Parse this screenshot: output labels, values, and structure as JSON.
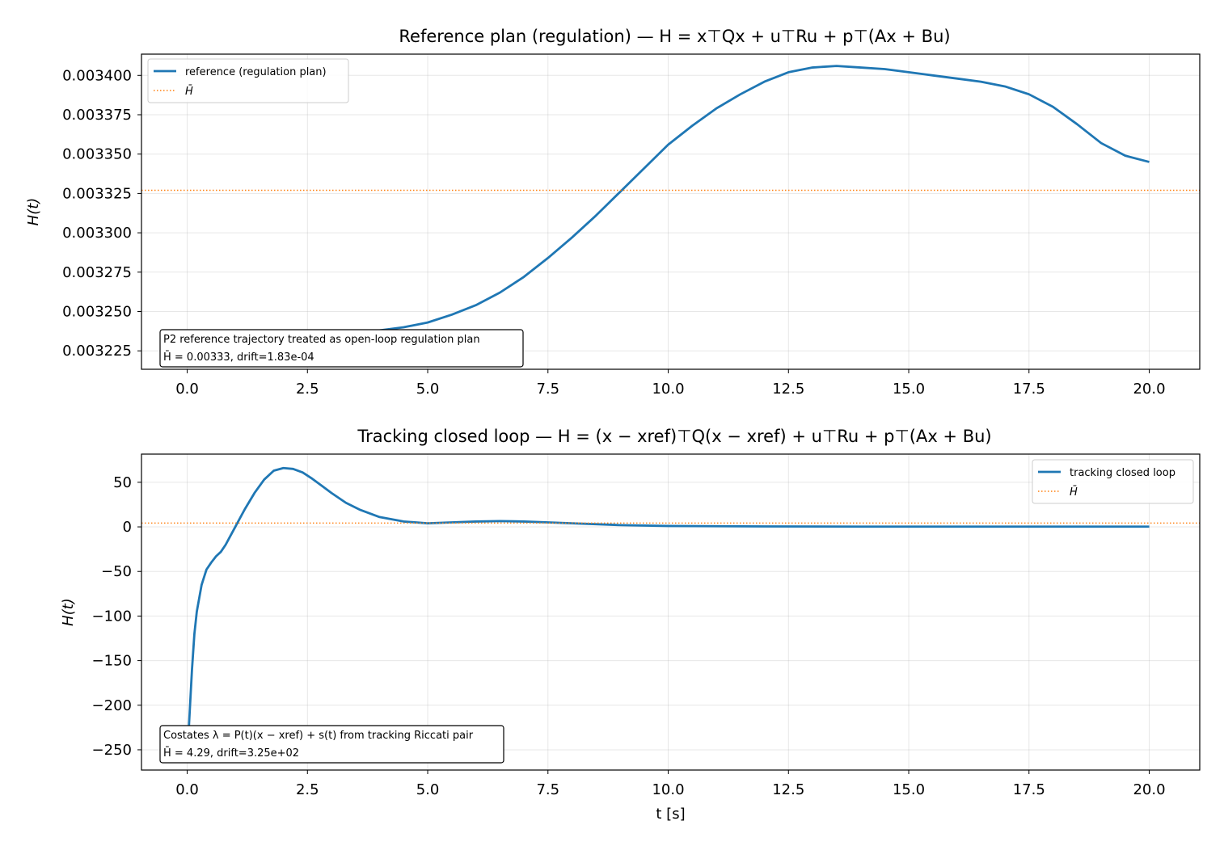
{
  "chart_data": [
    {
      "type": "line",
      "title": "Reference plan (regulation) — H = x⊤Qx + u⊤Ru + p⊤(Ax + Bu)",
      "xlabel": "",
      "ylabel": "H(t)",
      "xlim": [
        -0.95,
        21.05
      ],
      "ylim": [
        0.0032133,
        0.0034135
      ],
      "xticks": [
        0.0,
        2.5,
        5.0,
        7.5,
        10.0,
        12.5,
        15.0,
        17.5,
        20.0
      ],
      "xtick_labels": [
        "0.0",
        "2.5",
        "5.0",
        "7.5",
        "10.0",
        "12.5",
        "15.0",
        "17.5",
        "20.0"
      ],
      "yticks": [
        0.003225,
        0.00325,
        0.003275,
        0.0033,
        0.003325,
        0.00335,
        0.003375,
        0.0034
      ],
      "ytick_labels": [
        "0.003225",
        "0.003250",
        "0.003275",
        "0.003300",
        "0.003325",
        "0.003350",
        "0.003375",
        "0.003400"
      ],
      "grid": true,
      "legend_position": "top-left",
      "series": [
        {
          "name": "reference (regulation plan)",
          "style": "solid",
          "color": "#1f77b4",
          "x": [
            0.0,
            0.5,
            1.0,
            1.5,
            2.0,
            2.5,
            3.0,
            3.5,
            4.0,
            4.5,
            5.0,
            5.5,
            6.0,
            6.5,
            7.0,
            7.5,
            8.0,
            8.5,
            9.0,
            9.5,
            10.0,
            10.5,
            11.0,
            11.5,
            12.0,
            12.5,
            13.0,
            13.5,
            14.0,
            14.5,
            15.0,
            15.5,
            16.0,
            16.5,
            17.0,
            17.5,
            18.0,
            18.5,
            19.0,
            19.5,
            20.0
          ],
          "y": [
            0.003227,
            0.00323,
            0.003234,
            0.003237,
            0.003238,
            0.003238,
            0.003238,
            0.003238,
            0.003238,
            0.00324,
            0.003243,
            0.003248,
            0.003254,
            0.003262,
            0.003272,
            0.003284,
            0.003297,
            0.003311,
            0.003326,
            0.003341,
            0.003356,
            0.003368,
            0.003379,
            0.003388,
            0.003396,
            0.003402,
            0.003405,
            0.003406,
            0.003405,
            0.003404,
            0.003402,
            0.0034,
            0.003398,
            0.003396,
            0.003393,
            0.003388,
            0.00338,
            0.003369,
            0.003357,
            0.003349,
            0.003345
          ]
        },
        {
          "name": "H̄",
          "style": "dotted",
          "color": "#ff7f0e",
          "hline": 0.003327
        }
      ],
      "annotation": {
        "line1": "P2 reference trajectory treated as open-loop regulation plan",
        "line2": "H̄ = 0.00333, drift=1.83e-04"
      }
    },
    {
      "type": "line",
      "title": "Tracking closed loop — H = (x − xref)⊤Q(x − xref) + u⊤Ru + p⊤(Ax + Bu)",
      "xlabel": "t [s]",
      "ylabel": "H(t)",
      "xlim": [
        -0.95,
        21.05
      ],
      "ylim": [
        -272.7,
        81.6
      ],
      "xticks": [
        0.0,
        2.5,
        5.0,
        7.5,
        10.0,
        12.5,
        15.0,
        17.5,
        20.0
      ],
      "xtick_labels": [
        "0.0",
        "2.5",
        "5.0",
        "7.5",
        "10.0",
        "12.5",
        "15.0",
        "17.5",
        "20.0"
      ],
      "yticks": [
        -250,
        -200,
        -150,
        -100,
        -50,
        0,
        50
      ],
      "ytick_labels": [
        "−250",
        "−200",
        "−150",
        "−100",
        "−50",
        "0",
        "50"
      ],
      "grid": true,
      "legend_position": "top-right",
      "series": [
        {
          "name": "tracking closed loop",
          "style": "solid",
          "color": "#1f77b4",
          "x": [
            0.0,
            0.05,
            0.1,
            0.15,
            0.2,
            0.3,
            0.4,
            0.5,
            0.6,
            0.7,
            0.8,
            0.9,
            1.0,
            1.1,
            1.2,
            1.4,
            1.6,
            1.8,
            2.0,
            2.2,
            2.4,
            2.6,
            2.8,
            3.0,
            3.3,
            3.6,
            4.0,
            4.5,
            5.0,
            5.5,
            6.0,
            6.5,
            7.0,
            7.5,
            8.0,
            9.0,
            10.0,
            12.0,
            14.0,
            16.0,
            18.0,
            20.0
          ],
          "y": [
            -260,
            -210,
            -160,
            -120,
            -95,
            -65,
            -48,
            -40,
            -33,
            -28,
            -20,
            -10,
            0,
            10,
            20,
            38,
            53,
            63,
            66,
            65,
            61,
            54,
            46,
            38,
            27,
            19,
            11,
            6,
            4,
            5,
            6,
            6.5,
            6,
            5,
            4,
            2,
            1,
            0.5,
            0.3,
            0.3,
            0.3,
            0.3
          ]
        },
        {
          "name": "H̄",
          "style": "dotted",
          "color": "#ff7f0e",
          "hline": 4.29
        }
      ],
      "annotation": {
        "line1": "Costates λ = P(t)(x − xref) + s(t) from tracking Riccati pair",
        "line2": "H̄ = 4.29, drift=3.25e+02"
      }
    }
  ]
}
